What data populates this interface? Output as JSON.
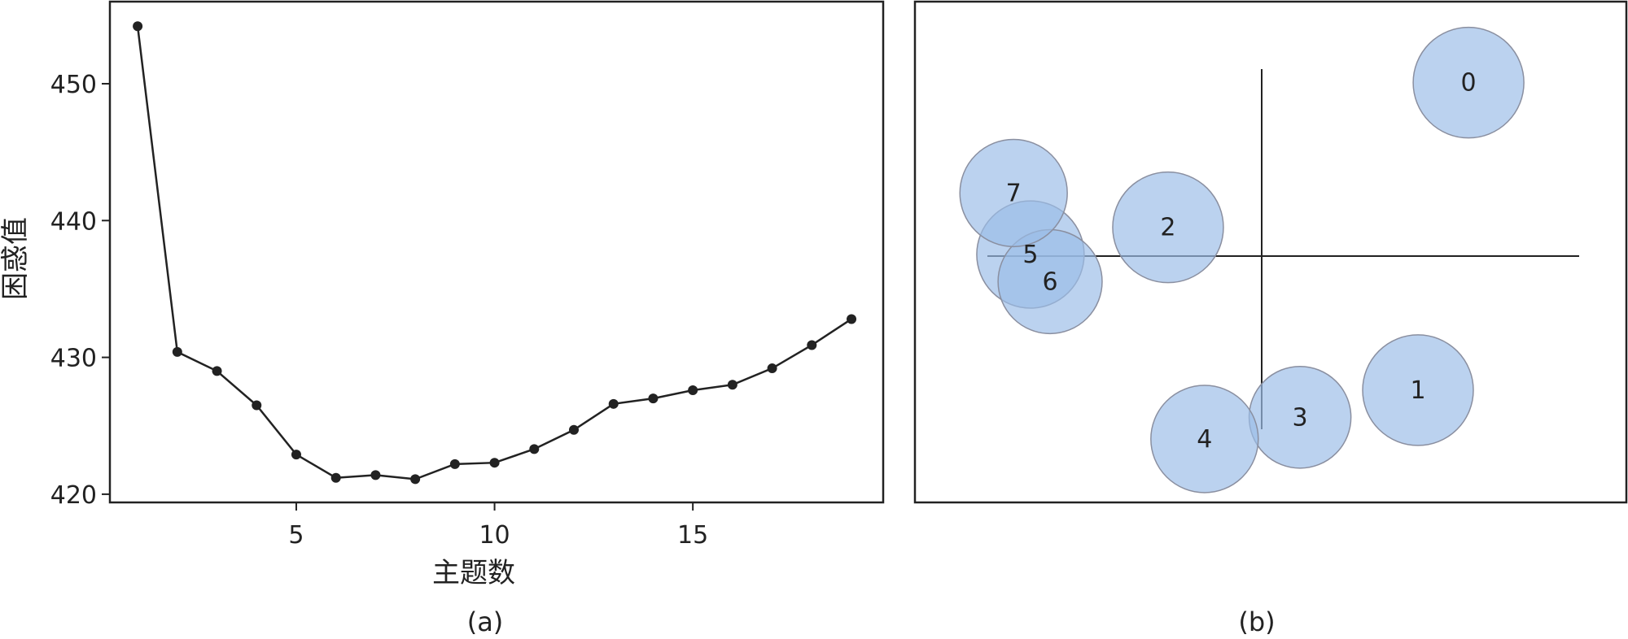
{
  "chart_data": [
    {
      "type": "line",
      "caption": "(a)",
      "xlabel": "主题数",
      "ylabel": "困惑值",
      "xlim": [
        0.3,
        19.8
      ],
      "ylim": [
        419.4,
        456.0
      ],
      "xticks": [
        5,
        10,
        15
      ],
      "yticks": [
        420,
        430,
        440,
        450
      ],
      "x": [
        1,
        2,
        3,
        4,
        5,
        6,
        7,
        8,
        9,
        10,
        11,
        12,
        13,
        14,
        15,
        16,
        17,
        18,
        19
      ],
      "y": [
        454.2,
        430.4,
        429.0,
        426.5,
        422.9,
        421.2,
        421.4,
        421.1,
        422.2,
        422.3,
        423.3,
        424.7,
        426.6,
        427.0,
        427.6,
        428.0,
        429.2,
        430.9,
        432.8
      ],
      "color": "#222222"
    },
    {
      "type": "scatter",
      "caption": "(b)",
      "description_free": true,
      "xlim": [
        -1.0,
        1.0
      ],
      "ylim": [
        -1.0,
        1.0
      ],
      "bubble_color": "#9bbde8",
      "bubble_edge": "#8a8fa0",
      "points": [
        {
          "label": "0",
          "x": 0.78,
          "y": 0.97,
          "size": 1.0
        },
        {
          "label": "1",
          "x": 0.6,
          "y": -0.73,
          "size": 1.0
        },
        {
          "label": "2",
          "x": -0.29,
          "y": 0.17,
          "size": 1.0
        },
        {
          "label": "3",
          "x": 0.18,
          "y": -0.88,
          "size": 0.92
        },
        {
          "label": "4",
          "x": -0.16,
          "y": -1.0,
          "size": 0.97
        },
        {
          "label": "5",
          "x": -0.78,
          "y": 0.02,
          "size": 0.97
        },
        {
          "label": "6",
          "x": -0.71,
          "y": -0.13,
          "size": 0.94
        },
        {
          "label": "7",
          "x": -0.84,
          "y": 0.36,
          "size": 0.97
        }
      ]
    }
  ]
}
